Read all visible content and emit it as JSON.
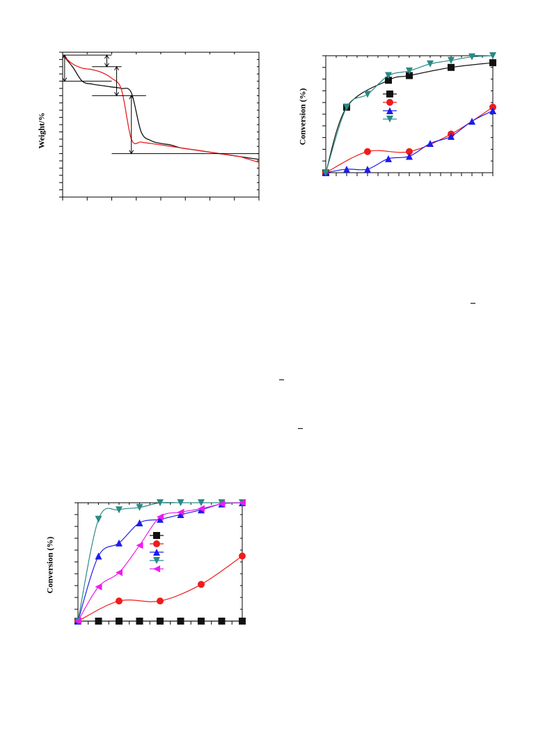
{
  "labels": {
    "weight_axis": "Weight/%",
    "conversion_axis_a": "Conversion (%)",
    "conversion_axis_b": "Conversion (%)"
  },
  "colors": {
    "black": "#111111",
    "red": "#ee1c1c",
    "blue": "#1c1cee",
    "teal": "#2a8a84",
    "magenta": "#ee1cee"
  },
  "chart_data": [
    {
      "type": "line",
      "ylabel": "Weight/%",
      "xlabel": "",
      "x": [
        0,
        2,
        4,
        6,
        8,
        10,
        12,
        14,
        16,
        18,
        20,
        22,
        24,
        26,
        28,
        30,
        32,
        34,
        36,
        38,
        40
      ],
      "xlim": [
        0,
        40
      ],
      "ylim": [
        0,
        100
      ],
      "series": [
        {
          "color": "#111111",
          "values": [
            98,
            90,
            80,
            78,
            77,
            76,
            75,
            72,
            45,
            39,
            37,
            36,
            34,
            33,
            32,
            31,
            30,
            29,
            28,
            27,
            26
          ]
        },
        {
          "color": "#ee1c1c",
          "values": [
            98,
            92,
            89,
            88,
            86,
            82,
            74,
            40,
            38,
            37,
            36,
            35,
            34,
            33,
            32,
            31,
            30,
            29,
            28,
            26,
            24
          ]
        }
      ],
      "annotations": "step-height brackets with vertical arrows marking weight-loss stages"
    },
    {
      "type": "line",
      "ylabel": "Conversion (%)",
      "xlabel": "",
      "x": [
        0,
        1,
        2,
        3,
        4,
        5,
        6,
        7,
        8
      ],
      "xlim": [
        0,
        8
      ],
      "ylim": [
        0,
        100
      ],
      "legend_position": "center-right",
      "series": [
        {
          "marker": "square",
          "color": "#111111",
          "x": [
            0,
            1,
            3,
            4,
            6,
            8
          ],
          "values": [
            0,
            56,
            79,
            83,
            90,
            94
          ]
        },
        {
          "marker": "circle",
          "color": "#ee1c1c",
          "x": [
            0,
            2,
            4,
            6,
            8
          ],
          "values": [
            0,
            18,
            18,
            33,
            56
          ]
        },
        {
          "marker": "triangle-up",
          "color": "#1c1cee",
          "x": [
            0,
            1,
            2,
            3,
            4,
            5,
            6,
            7,
            8
          ],
          "values": [
            0,
            3,
            3,
            12,
            14,
            25,
            31,
            44,
            53
          ]
        },
        {
          "marker": "triangle-down",
          "color": "#2a8a84",
          "x": [
            0,
            1,
            2,
            3,
            4,
            5,
            6,
            7,
            8
          ],
          "values": [
            0,
            56,
            67,
            83,
            87,
            93,
            96,
            99,
            100
          ]
        }
      ]
    },
    {
      "type": "line",
      "ylabel": "Conversion (%)",
      "xlabel": "",
      "x": [
        0,
        1,
        2,
        3,
        4,
        5,
        6,
        7,
        8
      ],
      "xlim": [
        0,
        8
      ],
      "ylim": [
        0,
        100
      ],
      "legend_position": "center-right",
      "series": [
        {
          "marker": "square",
          "color": "#111111",
          "x": [
            0,
            1,
            2,
            3,
            4,
            5,
            6,
            7,
            8
          ],
          "values": [
            0,
            0,
            0,
            0,
            0,
            0,
            0,
            0,
            0
          ]
        },
        {
          "marker": "circle",
          "color": "#ee1c1c",
          "x": [
            0,
            2,
            4,
            6,
            8
          ],
          "values": [
            0,
            17,
            17,
            31,
            55
          ]
        },
        {
          "marker": "triangle-up",
          "color": "#1c1cee",
          "x": [
            0,
            1,
            2,
            3,
            4,
            5,
            6,
            7,
            8
          ],
          "values": [
            0,
            55,
            66,
            83,
            86,
            90,
            94,
            99,
            100
          ]
        },
        {
          "marker": "triangle-down",
          "color": "#2a8a84",
          "x": [
            0,
            1,
            2,
            3,
            4,
            5,
            6,
            7,
            8
          ],
          "values": [
            0,
            86,
            94,
            96,
            100,
            100,
            100,
            100,
            100
          ]
        },
        {
          "marker": "triangle-left",
          "color": "#ee1cee",
          "x": [
            0,
            1,
            2,
            3,
            4,
            5,
            6,
            7,
            8
          ],
          "values": [
            0,
            29,
            41,
            64,
            88,
            92,
            95,
            99,
            100
          ]
        }
      ]
    }
  ]
}
